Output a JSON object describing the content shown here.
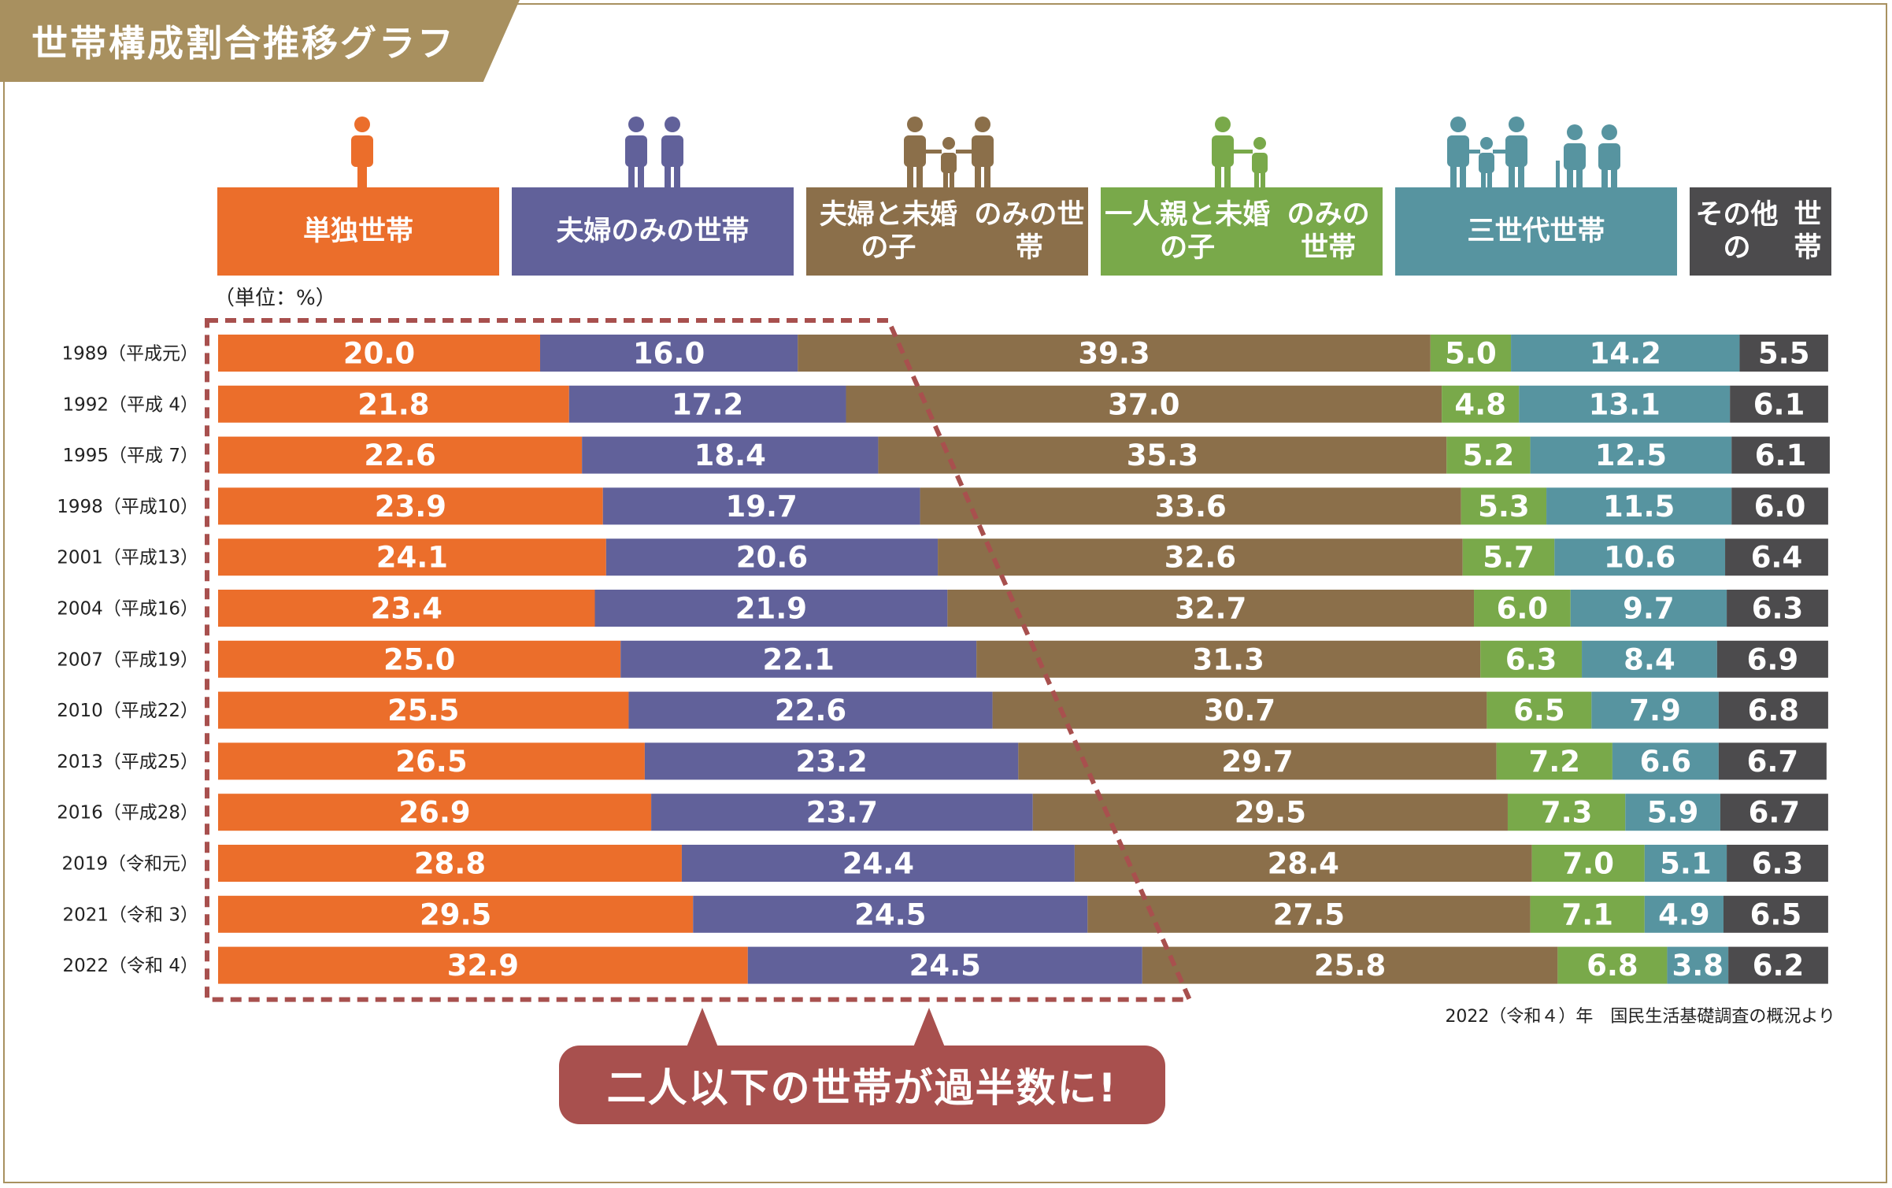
{
  "title": "世帯構成割合推移グラフ",
  "unit": "（単位：%）",
  "source": "2022（令和４）年　国民生活基礎調査の概況より",
  "callout": "二人以下の世帯が過半数に!",
  "categories": [
    {
      "key": "single",
      "label": "単独世帯",
      "color": "#eb6e2b",
      "icon": "single-person-icon"
    },
    {
      "key": "couple",
      "label": "夫婦のみの世帯",
      "color": "#61619a",
      "icon": "couple-icon"
    },
    {
      "key": "couple_child",
      "label": "夫婦と未婚の子のみの世帯",
      "label_lines": [
        "夫婦と未婚の子",
        "のみの世帯"
      ],
      "color": "#8b6f4a",
      "icon": "family-icon"
    },
    {
      "key": "single_parent",
      "label": "一人親と未婚の子のみの世帯",
      "label_lines": [
        "一人親と未婚の子",
        "のみの世帯"
      ],
      "color": "#79a94a",
      "icon": "single-parent-icon"
    },
    {
      "key": "three_gen",
      "label": "三世代世帯",
      "color": "#5794a0",
      "icon": "three-generation-icon"
    },
    {
      "key": "other",
      "label": "その他の世帯",
      "label_lines": [
        "その他の",
        "世帯"
      ],
      "color": "#4c4b4d",
      "icon": ""
    }
  ],
  "chart_data": {
    "type": "bar",
    "orientation": "horizontal",
    "stacked": true,
    "title": "世帯構成割合推移グラフ",
    "unit": "%",
    "categories": [
      "1989（平成元）",
      "1992（平成  4）",
      "1995（平成  7）",
      "1998（平成10）",
      "2001（平成13）",
      "2004（平成16）",
      "2007（平成19）",
      "2010（平成22）",
      "2013（平成25）",
      "2016（平成28）",
      "2019（令和元）",
      "2021（令和  3）",
      "2022（令和  4）"
    ],
    "series": [
      {
        "name": "単独世帯",
        "values": [
          20.0,
          21.8,
          22.6,
          23.9,
          24.1,
          23.4,
          25.0,
          25.5,
          26.5,
          26.9,
          28.8,
          29.5,
          32.9
        ]
      },
      {
        "name": "夫婦のみの世帯",
        "values": [
          16.0,
          17.2,
          18.4,
          19.7,
          20.6,
          21.9,
          22.1,
          22.6,
          23.2,
          23.7,
          24.4,
          24.5,
          24.5
        ]
      },
      {
        "name": "夫婦と未婚の子のみの世帯",
        "values": [
          39.3,
          37.0,
          35.3,
          33.6,
          32.6,
          32.7,
          31.3,
          30.7,
          29.7,
          29.5,
          28.4,
          27.5,
          25.8
        ]
      },
      {
        "name": "一人親と未婚の子のみの世帯",
        "values": [
          5.0,
          4.8,
          5.2,
          5.3,
          5.7,
          6.0,
          6.3,
          6.5,
          7.2,
          7.3,
          7.0,
          7.1,
          6.8
        ]
      },
      {
        "name": "三世代世帯",
        "values": [
          14.2,
          13.1,
          12.5,
          11.5,
          10.6,
          9.7,
          8.4,
          7.9,
          6.6,
          5.9,
          5.1,
          4.9,
          3.8
        ]
      },
      {
        "name": "その他の世帯",
        "values": [
          5.5,
          6.1,
          6.1,
          6.0,
          6.4,
          6.3,
          6.9,
          6.8,
          6.7,
          6.7,
          6.3,
          6.5,
          6.2
        ]
      }
    ],
    "xlim": [
      0,
      100.2
    ],
    "grid": false,
    "legend": "top"
  }
}
